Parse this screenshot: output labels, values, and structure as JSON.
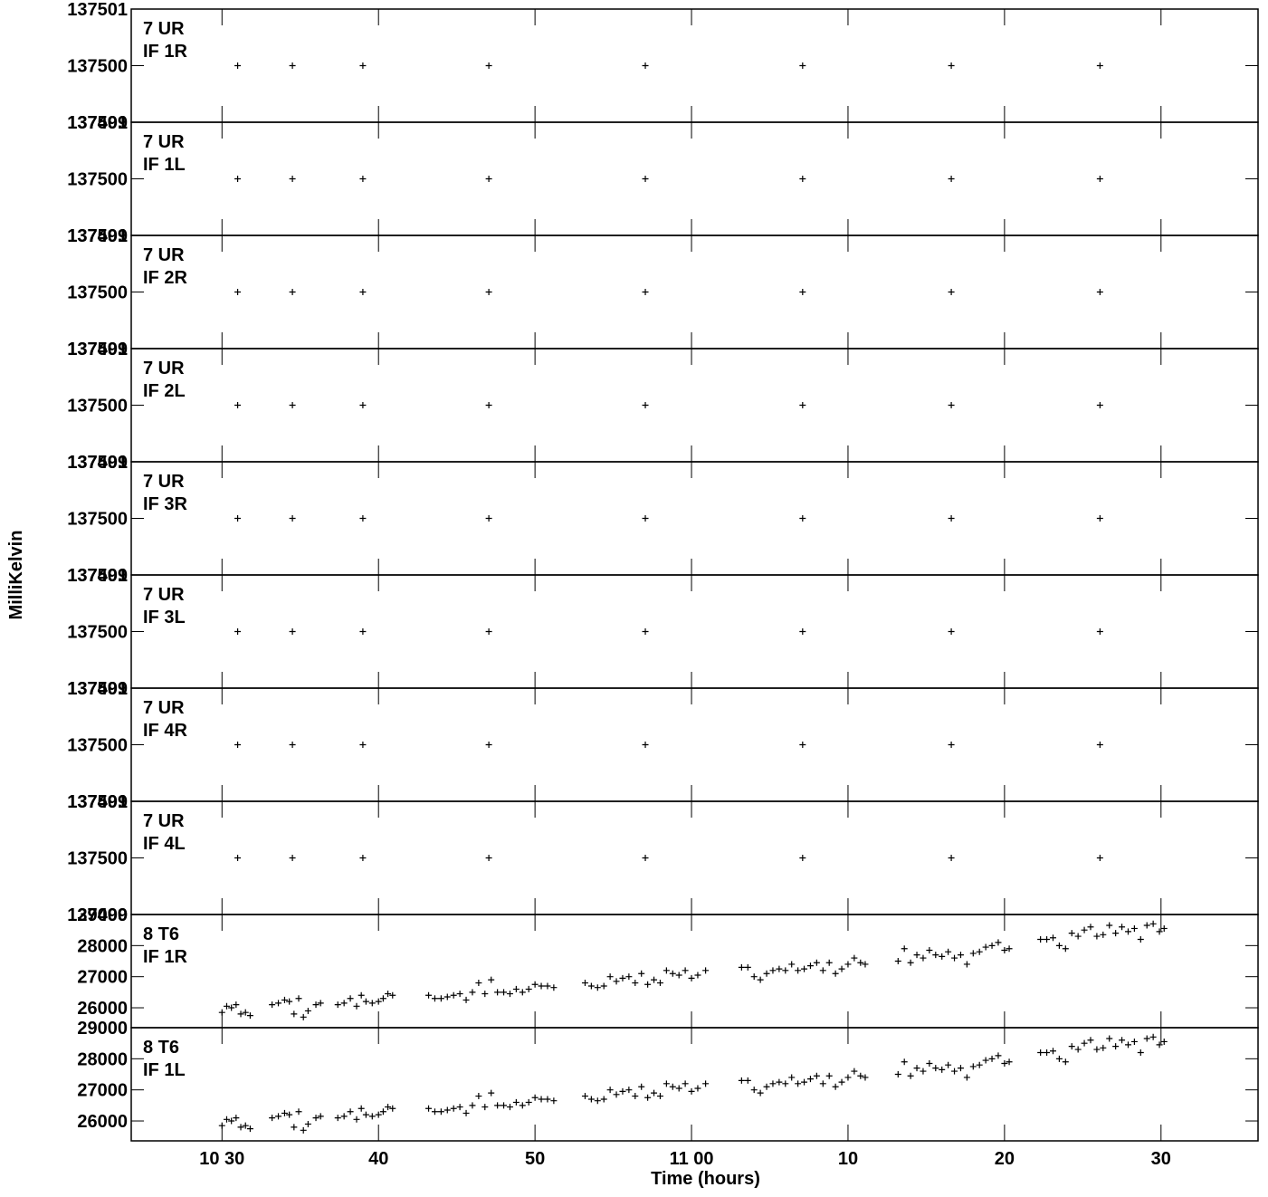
{
  "chart_data": [
    {
      "type": "scatter",
      "labels": [
        "7 UR",
        "IF 1R"
      ],
      "ylabel": "MilliKelvin",
      "xlim": [
        624.2,
        696.2
      ],
      "xticks": [
        630,
        640,
        650,
        660,
        670,
        680,
        690
      ],
      "ylim": [
        137499,
        137501
      ],
      "yticks": [
        137499,
        137500,
        137501
      ],
      "x": [
        631.0,
        634.5,
        639.0,
        647.05,
        657.05,
        667.1,
        676.6,
        686.1
      ],
      "values": [
        137500,
        137500,
        137500,
        137500,
        137500,
        137500,
        137500,
        137500
      ]
    },
    {
      "type": "scatter",
      "labels": [
        "7 UR",
        "IF 1L"
      ],
      "xlim": [
        624.2,
        696.2
      ],
      "xticks": [
        630,
        640,
        650,
        660,
        670,
        680,
        690
      ],
      "ylim": [
        137499,
        137501
      ],
      "yticks": [
        137499,
        137500,
        137501
      ],
      "x": [
        631.0,
        634.5,
        639.0,
        647.05,
        657.05,
        667.1,
        676.6,
        686.1
      ],
      "values": [
        137500,
        137500,
        137500,
        137500,
        137500,
        137500,
        137500,
        137500
      ]
    },
    {
      "type": "scatter",
      "labels": [
        "7 UR",
        "IF 2R"
      ],
      "xlim": [
        624.2,
        696.2
      ],
      "xticks": [
        630,
        640,
        650,
        660,
        670,
        680,
        690
      ],
      "ylim": [
        137499,
        137501
      ],
      "yticks": [
        137499,
        137500,
        137501
      ],
      "x": [
        631.0,
        634.5,
        639.0,
        647.05,
        657.05,
        667.1,
        676.6,
        686.1
      ],
      "values": [
        137500,
        137500,
        137500,
        137500,
        137500,
        137500,
        137500,
        137500
      ]
    },
    {
      "type": "scatter",
      "labels": [
        "7 UR",
        "IF 2L"
      ],
      "xlim": [
        624.2,
        696.2
      ],
      "xticks": [
        630,
        640,
        650,
        660,
        670,
        680,
        690
      ],
      "ylim": [
        137499,
        137501
      ],
      "yticks": [
        137499,
        137500,
        137501
      ],
      "x": [
        631.0,
        634.5,
        639.0,
        647.05,
        657.05,
        667.1,
        676.6,
        686.1
      ],
      "values": [
        137500,
        137500,
        137500,
        137500,
        137500,
        137500,
        137500,
        137500
      ]
    },
    {
      "type": "scatter",
      "labels": [
        "7 UR",
        "IF 3R"
      ],
      "xlim": [
        624.2,
        696.2
      ],
      "xticks": [
        630,
        640,
        650,
        660,
        670,
        680,
        690
      ],
      "ylim": [
        137499,
        137501
      ],
      "yticks": [
        137499,
        137500,
        137501
      ],
      "x": [
        631.0,
        634.5,
        639.0,
        647.05,
        657.05,
        667.1,
        676.6,
        686.1
      ],
      "values": [
        137500,
        137500,
        137500,
        137500,
        137500,
        137500,
        137500,
        137500
      ]
    },
    {
      "type": "scatter",
      "labels": [
        "7 UR",
        "IF 3L"
      ],
      "xlim": [
        624.2,
        696.2
      ],
      "xticks": [
        630,
        640,
        650,
        660,
        670,
        680,
        690
      ],
      "ylim": [
        137499,
        137501
      ],
      "yticks": [
        137499,
        137500,
        137501
      ],
      "x": [
        631.0,
        634.5,
        639.0,
        647.05,
        657.05,
        667.1,
        676.6,
        686.1
      ],
      "values": [
        137500,
        137500,
        137500,
        137500,
        137500,
        137500,
        137500,
        137500
      ]
    },
    {
      "type": "scatter",
      "labels": [
        "7 UR",
        "IF 4R"
      ],
      "xlim": [
        624.2,
        696.2
      ],
      "xticks": [
        630,
        640,
        650,
        660,
        670,
        680,
        690
      ],
      "ylim": [
        137499,
        137501
      ],
      "yticks": [
        137499,
        137500,
        137501
      ],
      "x": [
        631.0,
        634.5,
        639.0,
        647.05,
        657.05,
        667.1,
        676.6,
        686.1
      ],
      "values": [
        137500,
        137500,
        137500,
        137500,
        137500,
        137500,
        137500,
        137500
      ]
    },
    {
      "type": "scatter",
      "labels": [
        "7 UR",
        "IF 4L"
      ],
      "xlim": [
        624.2,
        696.2
      ],
      "xticks": [
        630,
        640,
        650,
        660,
        670,
        680,
        690
      ],
      "ylim": [
        137499,
        137501
      ],
      "yticks": [
        137499,
        137500,
        137501
      ],
      "x": [
        631.0,
        634.5,
        639.0,
        647.05,
        657.05,
        667.1,
        676.6,
        686.1
      ],
      "values": [
        137500,
        137500,
        137500,
        137500,
        137500,
        137500,
        137500,
        137500
      ]
    },
    {
      "type": "scatter",
      "labels": [
        "8 T6",
        "IF 1R"
      ],
      "xlim": [
        624.2,
        696.2
      ],
      "xticks": [
        630,
        640,
        650,
        660,
        670,
        680,
        690
      ],
      "ylim": [
        25360,
        29000
      ],
      "yticks": [
        26000,
        27000,
        28000,
        29000
      ],
      "x": [
        630.0,
        630.3,
        630.6,
        630.9,
        631.2,
        631.5,
        631.8,
        633.2,
        633.6,
        634.0,
        634.3,
        634.6,
        634.9,
        635.2,
        635.5,
        636.0,
        636.3,
        637.4,
        637.8,
        638.2,
        638.6,
        638.9,
        639.2,
        639.6,
        640.0,
        640.3,
        640.6,
        640.9,
        643.2,
        643.6,
        644.0,
        644.4,
        644.8,
        645.2,
        645.6,
        646.0,
        646.4,
        646.8,
        647.2,
        647.6,
        648.0,
        648.4,
        648.8,
        649.2,
        649.6,
        650.0,
        650.4,
        650.8,
        651.2,
        653.2,
        653.6,
        654.0,
        654.4,
        654.8,
        655.2,
        655.6,
        656.0,
        656.4,
        656.8,
        657.2,
        657.6,
        658.0,
        658.4,
        658.8,
        659.2,
        659.6,
        660.0,
        660.4,
        660.9,
        663.2,
        663.6,
        664.0,
        664.4,
        664.8,
        665.2,
        665.6,
        666.0,
        666.4,
        666.8,
        667.2,
        667.6,
        668.0,
        668.4,
        668.8,
        669.2,
        669.6,
        670.0,
        670.4,
        670.8,
        671.1,
        673.2,
        673.6,
        674.0,
        674.4,
        674.8,
        675.2,
        675.6,
        676.0,
        676.4,
        676.8,
        677.2,
        677.6,
        678.0,
        678.4,
        678.8,
        679.2,
        679.6,
        680.0,
        680.3,
        682.3,
        682.7,
        683.1,
        683.5,
        683.9,
        684.3,
        684.7,
        685.1,
        685.5,
        685.9,
        686.3,
        686.7,
        687.1,
        687.5,
        687.9,
        688.3,
        688.7,
        689.1,
        689.5,
        689.9,
        690.2
      ],
      "values": [
        25850,
        26050,
        26000,
        26100,
        25800,
        25850,
        25750,
        26100,
        26150,
        26250,
        26200,
        25800,
        26300,
        25700,
        25900,
        26100,
        26150,
        26100,
        26150,
        26300,
        26050,
        26400,
        26200,
        26150,
        26200,
        26300,
        26450,
        26400,
        26400,
        26300,
        26300,
        26350,
        26400,
        26450,
        26250,
        26500,
        26800,
        26450,
        26900,
        26500,
        26500,
        26450,
        26600,
        26500,
        26600,
        26750,
        26700,
        26700,
        26650,
        26800,
        26700,
        26650,
        26700,
        27000,
        26850,
        26950,
        27000,
        26800,
        27100,
        26750,
        26900,
        26800,
        27200,
        27100,
        27050,
        27200,
        26950,
        27050,
        27200,
        27300,
        27300,
        27000,
        26900,
        27100,
        27200,
        27250,
        27200,
        27400,
        27200,
        27250,
        27350,
        27450,
        27200,
        27450,
        27100,
        27250,
        27400,
        27600,
        27450,
        27400,
        27500,
        27900,
        27450,
        27700,
        27600,
        27850,
        27700,
        27650,
        27800,
        27600,
        27700,
        27400,
        27750,
        27800,
        27950,
        28000,
        28100,
        27850,
        27900,
        28200,
        28200,
        28250,
        28000,
        27900,
        28400,
        28300,
        28500,
        28600,
        28300,
        28350,
        28650,
        28400,
        28600,
        28450,
        28550,
        28200,
        28650,
        28700,
        28450,
        28550
      ]
    },
    {
      "type": "scatter",
      "labels": [
        "8 T6",
        "IF 1L"
      ],
      "xlabel": "Time (hours)",
      "xlim": [
        624.2,
        696.2
      ],
      "xticks": [
        {
          "value": 630,
          "label": "10 30"
        },
        {
          "value": 640,
          "label": "40"
        },
        {
          "value": 650,
          "label": "50"
        },
        {
          "value": 660,
          "label": "11 00"
        },
        {
          "value": 670,
          "label": "10"
        },
        {
          "value": 680,
          "label": "20"
        },
        {
          "value": 690,
          "label": "30"
        }
      ],
      "ylim": [
        25360,
        29000
      ],
      "yticks": [
        26000,
        27000,
        28000,
        29000
      ],
      "x": [
        630.0,
        630.3,
        630.6,
        630.9,
        631.2,
        631.5,
        631.8,
        633.2,
        633.6,
        634.0,
        634.3,
        634.6,
        634.9,
        635.2,
        635.5,
        636.0,
        636.3,
        637.4,
        637.8,
        638.2,
        638.6,
        638.9,
        639.2,
        639.6,
        640.0,
        640.3,
        640.6,
        640.9,
        643.2,
        643.6,
        644.0,
        644.4,
        644.8,
        645.2,
        645.6,
        646.0,
        646.4,
        646.8,
        647.2,
        647.6,
        648.0,
        648.4,
        648.8,
        649.2,
        649.6,
        650.0,
        650.4,
        650.8,
        651.2,
        653.2,
        653.6,
        654.0,
        654.4,
        654.8,
        655.2,
        655.6,
        656.0,
        656.4,
        656.8,
        657.2,
        657.6,
        658.0,
        658.4,
        658.8,
        659.2,
        659.6,
        660.0,
        660.4,
        660.9,
        663.2,
        663.6,
        664.0,
        664.4,
        664.8,
        665.2,
        665.6,
        666.0,
        666.4,
        666.8,
        667.2,
        667.6,
        668.0,
        668.4,
        668.8,
        669.2,
        669.6,
        670.0,
        670.4,
        670.8,
        671.1,
        673.2,
        673.6,
        674.0,
        674.4,
        674.8,
        675.2,
        675.6,
        676.0,
        676.4,
        676.8,
        677.2,
        677.6,
        678.0,
        678.4,
        678.8,
        679.2,
        679.6,
        680.0,
        680.3,
        682.3,
        682.7,
        683.1,
        683.5,
        683.9,
        684.3,
        684.7,
        685.1,
        685.5,
        685.9,
        686.3,
        686.7,
        687.1,
        687.5,
        687.9,
        688.3,
        688.7,
        689.1,
        689.5,
        689.9,
        690.2
      ],
      "values": [
        25850,
        26050,
        26000,
        26100,
        25800,
        25850,
        25750,
        26100,
        26150,
        26250,
        26200,
        25800,
        26300,
        25700,
        25900,
        26100,
        26150,
        26100,
        26150,
        26300,
        26050,
        26400,
        26200,
        26150,
        26200,
        26300,
        26450,
        26400,
        26400,
        26300,
        26300,
        26350,
        26400,
        26450,
        26250,
        26500,
        26800,
        26450,
        26900,
        26500,
        26500,
        26450,
        26600,
        26500,
        26600,
        26750,
        26700,
        26700,
        26650,
        26800,
        26700,
        26650,
        26700,
        27000,
        26850,
        26950,
        27000,
        26800,
        27100,
        26750,
        26900,
        26800,
        27200,
        27100,
        27050,
        27200,
        26950,
        27050,
        27200,
        27300,
        27300,
        27000,
        26900,
        27100,
        27200,
        27250,
        27200,
        27400,
        27200,
        27250,
        27350,
        27450,
        27200,
        27450,
        27100,
        27250,
        27400,
        27600,
        27450,
        27400,
        27500,
        27900,
        27450,
        27700,
        27600,
        27850,
        27700,
        27650,
        27800,
        27600,
        27700,
        27400,
        27750,
        27800,
        27950,
        28000,
        28100,
        27850,
        27900,
        28200,
        28200,
        28250,
        28000,
        27900,
        28400,
        28300,
        28500,
        28600,
        28300,
        28350,
        28650,
        28400,
        28600,
        28450,
        28550,
        28200,
        28650,
        28700,
        28450,
        28550
      ]
    }
  ]
}
